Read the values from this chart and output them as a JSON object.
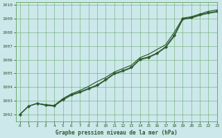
{
  "title": "Graphe pression niveau de la mer (hPa)",
  "bg_color": "#cce8eb",
  "line_color": "#2d5a2d",
  "grid_color": "#6aaa6a",
  "xlim": [
    -0.5,
    23
  ],
  "ylim": [
    1001.5,
    1010.2
  ],
  "yticks": [
    1002,
    1003,
    1004,
    1005,
    1006,
    1007,
    1008,
    1009,
    1010
  ],
  "xticks": [
    0,
    1,
    2,
    3,
    4,
    5,
    6,
    7,
    8,
    9,
    10,
    11,
    12,
    13,
    14,
    15,
    16,
    17,
    18,
    19,
    20,
    21,
    22,
    23
  ],
  "series_mid": [
    1002.0,
    1002.6,
    1002.8,
    1002.7,
    1002.65,
    1003.1,
    1003.45,
    1003.65,
    1003.9,
    1004.15,
    1004.55,
    1005.0,
    1005.2,
    1005.45,
    1006.05,
    1006.2,
    1006.5,
    1006.95,
    1007.8,
    1009.0,
    1009.1,
    1009.3,
    1009.45,
    1009.55
  ],
  "series_upper": [
    1002.0,
    1002.6,
    1002.8,
    1002.7,
    1002.65,
    1003.15,
    1003.5,
    1003.75,
    1004.05,
    1004.4,
    1004.7,
    1005.1,
    1005.35,
    1005.6,
    1006.15,
    1006.4,
    1006.75,
    1007.1,
    1008.0,
    1009.05,
    1009.15,
    1009.35,
    1009.55,
    1009.65
  ],
  "series_lower": [
    1002.0,
    1002.6,
    1002.8,
    1002.65,
    1002.6,
    1003.05,
    1003.4,
    1003.6,
    1003.85,
    1004.1,
    1004.5,
    1004.95,
    1005.15,
    1005.4,
    1006.0,
    1006.15,
    1006.45,
    1006.9,
    1007.7,
    1008.95,
    1009.05,
    1009.25,
    1009.4,
    1009.5
  ]
}
